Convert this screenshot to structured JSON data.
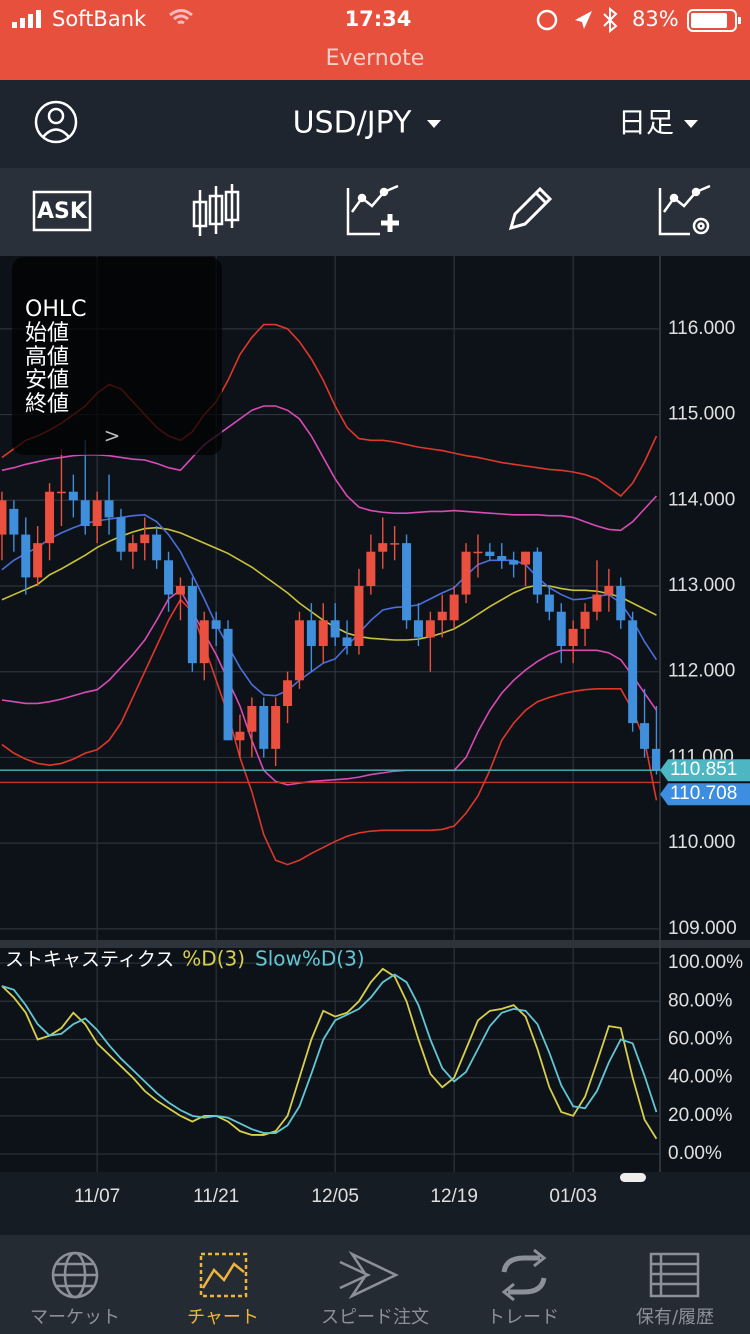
{
  "status_bar": {
    "carrier": "SoftBank",
    "time": "17:34",
    "battery": "83%",
    "back_app": "Evernote"
  },
  "header": {
    "symbol": "USD/JPY",
    "period": "日足"
  },
  "toolbar": {
    "ask_label": "ASK"
  },
  "info_panel": {
    "title": "OHLC",
    "rows": [
      "始値",
      "高値",
      "安値",
      "終値"
    ],
    "arrow": ">"
  },
  "chart_data": [
    {
      "type": "candlestick",
      "categories": [
        null,
        null,
        null,
        null,
        null,
        null,
        null,
        null,
        "11/07",
        null,
        null,
        null,
        null,
        null,
        null,
        null,
        null,
        null,
        "11/21",
        null,
        null,
        null,
        null,
        null,
        null,
        null,
        null,
        null,
        "12/05",
        null,
        null,
        null,
        null,
        null,
        null,
        null,
        null,
        null,
        "12/19",
        null,
        null,
        null,
        null,
        null,
        null,
        null,
        null,
        null,
        "01/03",
        null,
        null,
        null,
        null,
        null,
        null,
        null
      ],
      "open": [
        113.6,
        113.9,
        113.6,
        113.1,
        113.5,
        114.1,
        114.1,
        114.0,
        113.7,
        114.0,
        113.8,
        113.4,
        113.5,
        113.6,
        113.3,
        112.9,
        113.0,
        112.1,
        112.6,
        112.5,
        111.2,
        111.3,
        111.6,
        111.1,
        111.6,
        111.9,
        112.6,
        112.3,
        112.6,
        112.4,
        112.3,
        113.0,
        113.4,
        113.5,
        113.5,
        112.6,
        112.4,
        112.6,
        112.6,
        112.9,
        113.4,
        113.4,
        113.35,
        113.3,
        113.25,
        113.4,
        112.9,
        112.7,
        112.3,
        112.5,
        112.7,
        112.9,
        113.0,
        112.6,
        111.4,
        111.1
      ],
      "high": [
        114.1,
        114.0,
        113.8,
        113.7,
        114.2,
        114.6,
        114.3,
        114.7,
        114.1,
        114.3,
        113.9,
        113.6,
        113.8,
        113.7,
        113.4,
        113.1,
        113.1,
        112.7,
        112.7,
        112.6,
        111.5,
        111.7,
        111.7,
        111.7,
        112.0,
        112.7,
        112.8,
        112.8,
        112.8,
        112.6,
        113.2,
        113.6,
        113.8,
        113.7,
        113.6,
        112.8,
        112.7,
        112.9,
        113.0,
        113.5,
        113.6,
        113.5,
        113.5,
        113.4,
        113.4,
        113.45,
        113.0,
        112.8,
        112.6,
        112.8,
        113.3,
        113.2,
        113.1,
        112.7,
        111.8,
        111.6
      ],
      "low": [
        113.3,
        113.4,
        112.9,
        113.0,
        113.3,
        113.7,
        113.8,
        113.6,
        113.5,
        113.6,
        113.3,
        113.2,
        113.3,
        113.2,
        112.7,
        112.6,
        112.0,
        111.9,
        112.3,
        111.2,
        111.0,
        111.0,
        111.0,
        110.9,
        111.4,
        111.8,
        112.0,
        112.1,
        112.3,
        112.2,
        112.2,
        112.9,
        113.2,
        113.3,
        112.5,
        112.3,
        112.0,
        112.4,
        112.5,
        112.8,
        113.1,
        113.3,
        113.2,
        113.1,
        113.0,
        112.8,
        112.6,
        112.1,
        112.1,
        112.3,
        112.6,
        112.7,
        112.5,
        111.3,
        111.0,
        110.8
      ],
      "close": [
        114.0,
        113.6,
        113.1,
        113.5,
        114.1,
        114.1,
        114.0,
        113.7,
        114.0,
        113.8,
        113.4,
        113.5,
        113.6,
        113.3,
        112.9,
        113.0,
        112.1,
        112.6,
        112.5,
        111.2,
        111.3,
        111.6,
        111.1,
        111.6,
        111.9,
        112.6,
        112.3,
        112.6,
        112.4,
        112.3,
        113.0,
        113.4,
        113.5,
        113.5,
        112.6,
        112.4,
        112.6,
        112.7,
        112.9,
        113.4,
        113.4,
        113.35,
        113.3,
        113.25,
        113.4,
        112.9,
        112.7,
        112.3,
        112.5,
        112.7,
        112.9,
        113.0,
        112.6,
        111.4,
        111.1,
        110.85
      ],
      "up_color": "#e9503f",
      "down_color": "#3f8fdc",
      "lines": [
        {
          "color": "#e0372b",
          "values": [
            114.5,
            114.6,
            114.7,
            114.75,
            114.82,
            114.9,
            115.0,
            115.1,
            115.25,
            115.35,
            115.3,
            115.15,
            115.0,
            114.85,
            114.75,
            114.7,
            114.8,
            115.0,
            115.15,
            115.4,
            115.7,
            115.9,
            116.05,
            116.05,
            116.0,
            115.85,
            115.65,
            115.4,
            115.1,
            114.85,
            114.72,
            114.7,
            114.7,
            114.68,
            114.65,
            114.62,
            114.6,
            114.58,
            114.55,
            114.52,
            114.5,
            114.47,
            114.44,
            114.42,
            114.4,
            114.38,
            114.36,
            114.35,
            114.33,
            114.3,
            114.25,
            114.15,
            114.05,
            114.2,
            114.45,
            114.75
          ]
        },
        {
          "color": "#d84bb4",
          "values": [
            114.35,
            114.38,
            114.42,
            114.45,
            114.48,
            114.5,
            114.52,
            114.53,
            114.53,
            114.52,
            114.5,
            114.48,
            114.47,
            114.43,
            114.38,
            114.35,
            114.5,
            114.65,
            114.75,
            114.85,
            114.95,
            115.05,
            115.1,
            115.1,
            115.05,
            114.95,
            114.75,
            114.5,
            114.25,
            114.05,
            113.92,
            113.88,
            113.86,
            113.85,
            113.85,
            113.86,
            113.87,
            113.87,
            113.88,
            113.87,
            113.86,
            113.85,
            113.84,
            113.83,
            113.83,
            113.83,
            113.82,
            113.82,
            113.8,
            113.75,
            113.7,
            113.66,
            113.65,
            113.75,
            113.9,
            114.05
          ]
        },
        {
          "color": "#c9c23a",
          "values": [
            112.84,
            112.9,
            112.96,
            113.02,
            113.13,
            113.2,
            113.28,
            113.36,
            113.45,
            113.52,
            113.58,
            113.63,
            113.67,
            113.68,
            113.66,
            113.62,
            113.56,
            113.5,
            113.44,
            113.38,
            113.3,
            113.22,
            113.12,
            113.02,
            112.92,
            112.8,
            112.7,
            112.6,
            112.52,
            112.45,
            112.41,
            112.39,
            112.38,
            112.37,
            112.37,
            112.38,
            112.41,
            112.45,
            112.5,
            112.58,
            112.67,
            112.76,
            112.84,
            112.92,
            112.98,
            113.01,
            113.0,
            112.97,
            112.95,
            112.95,
            112.94,
            112.91,
            112.87,
            112.8,
            112.73,
            112.66
          ]
        },
        {
          "color": "#4b6fdc",
          "values": [
            113.19,
            113.3,
            113.38,
            113.45,
            113.55,
            113.62,
            113.68,
            113.73,
            113.76,
            113.78,
            113.8,
            113.82,
            113.83,
            113.75,
            113.6,
            113.4,
            113.13,
            112.85,
            112.55,
            112.3,
            112.05,
            111.85,
            111.73,
            111.72,
            111.78,
            111.9,
            112.0,
            112.1,
            112.15,
            112.3,
            112.45,
            112.6,
            112.72,
            112.75,
            112.76,
            112.78,
            112.85,
            112.92,
            112.98,
            113.12,
            113.25,
            113.3,
            113.3,
            113.3,
            113.25,
            113.1,
            112.98,
            112.9,
            112.84,
            112.85,
            112.88,
            112.9,
            112.8,
            112.6,
            112.35,
            112.14
          ]
        },
        {
          "color": "#d84bb4",
          "values": [
            111.67,
            111.65,
            111.63,
            111.63,
            111.65,
            111.68,
            111.72,
            111.76,
            111.79,
            111.9,
            112.05,
            112.2,
            112.37,
            112.6,
            112.85,
            112.95,
            112.7,
            112.45,
            112.2,
            111.9,
            111.6,
            111.2,
            110.85,
            110.72,
            110.68,
            110.7,
            110.72,
            110.73,
            110.74,
            110.75,
            110.77,
            110.8,
            110.82,
            110.84,
            110.85,
            110.85,
            110.85,
            110.85,
            110.85,
            111.0,
            111.3,
            111.55,
            111.75,
            111.9,
            112.02,
            112.12,
            112.2,
            112.25,
            112.25,
            112.25,
            112.25,
            112.22,
            112.14,
            111.95,
            111.75,
            111.55
          ]
        },
        {
          "color": "#e0372b",
          "values": [
            111.15,
            111.05,
            110.98,
            110.93,
            110.91,
            110.93,
            110.98,
            111.05,
            111.09,
            111.2,
            111.4,
            111.7,
            112.0,
            112.3,
            112.6,
            112.84,
            112.7,
            112.3,
            111.9,
            111.5,
            111.0,
            110.6,
            110.1,
            109.8,
            109.75,
            109.8,
            109.88,
            109.95,
            110.02,
            110.08,
            110.12,
            110.14,
            110.15,
            110.15,
            110.15,
            110.15,
            110.15,
            110.16,
            110.2,
            110.35,
            110.55,
            110.85,
            111.2,
            111.4,
            111.55,
            111.65,
            111.7,
            111.74,
            111.77,
            111.79,
            111.8,
            111.8,
            111.8,
            111.55,
            111.2,
            110.5
          ]
        }
      ],
      "ylim": [
        108.87,
        116.85
      ],
      "yticks": [
        {
          "value": 109,
          "label": "109.000"
        },
        {
          "value": 110,
          "label": "110.000"
        },
        {
          "value": 111,
          "label": "111.000"
        },
        {
          "value": 112,
          "label": "112.000"
        },
        {
          "value": 113,
          "label": "113.000"
        },
        {
          "value": 114,
          "label": "114.000"
        },
        {
          "value": 115,
          "label": "115.000"
        },
        {
          "value": 116,
          "label": "116.000"
        }
      ],
      "grid": true,
      "price_tags": [
        {
          "value": 110.851,
          "color": "#4cb6c2",
          "line_color": "#4cb6c2"
        },
        {
          "value": 110.708,
          "color": "#3d8ee0",
          "line_color": "#c0392b"
        }
      ]
    },
    {
      "type": "line",
      "title": "ストキャスティクス",
      "series": [
        {
          "name": "%D(3)",
          "color": "#d8cf4a",
          "values": [
            88,
            82,
            74,
            60,
            62,
            66,
            74,
            68,
            58,
            52,
            46,
            40,
            33,
            28,
            24,
            20,
            17,
            20,
            20,
            17,
            12,
            10,
            10,
            12,
            20,
            40,
            60,
            75,
            72,
            74,
            80,
            90,
            97,
            93,
            80,
            60,
            42,
            35,
            40,
            55,
            70,
            75,
            76,
            78,
            72,
            55,
            35,
            22,
            20,
            30,
            48,
            67,
            66,
            40,
            18,
            8
          ]
        },
        {
          "name": "Slow%D(3)",
          "color": "#62c6d4",
          "values": [
            88,
            86,
            78,
            68,
            62,
            63,
            68,
            71,
            65,
            57,
            50,
            44,
            38,
            32,
            27,
            23,
            20,
            19,
            20,
            19,
            16,
            13,
            11,
            11,
            15,
            25,
            42,
            60,
            70,
            73,
            76,
            82,
            90,
            94,
            90,
            78,
            60,
            45,
            38,
            43,
            55,
            67,
            74,
            76,
            75,
            68,
            53,
            36,
            25,
            24,
            33,
            48,
            60,
            58,
            41,
            22
          ]
        }
      ],
      "ylim": [
        -9.4,
        107.9
      ],
      "yticks": [
        {
          "value": 0,
          "label": "0.00%"
        },
        {
          "value": 20,
          "label": "20.00%"
        },
        {
          "value": 40,
          "label": "40.00%"
        },
        {
          "value": 60,
          "label": "60.00%"
        },
        {
          "value": 80,
          "label": "80.00%"
        },
        {
          "value": 100,
          "label": "100.00%"
        }
      ],
      "grid": true
    }
  ],
  "tab_bar": {
    "items": [
      "マーケット",
      "チャート",
      "スピード注文",
      "トレード",
      "保有/履歴"
    ],
    "active": 1
  }
}
